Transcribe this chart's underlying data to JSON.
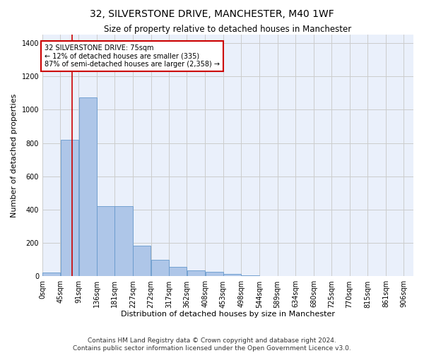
{
  "title": "32, SILVERSTONE DRIVE, MANCHESTER, M40 1WF",
  "subtitle": "Size of property relative to detached houses in Manchester",
  "xlabel": "Distribution of detached houses by size in Manchester",
  "ylabel": "Number of detached properties",
  "footer_line1": "Contains HM Land Registry data © Crown copyright and database right 2024.",
  "footer_line2": "Contains public sector information licensed under the Open Government Licence v3.0.",
  "annotation_title": "32 SILVERSTONE DRIVE: 75sqm",
  "annotation_line1": "← 12% of detached houses are smaller (335)",
  "annotation_line2": "87% of semi-detached houses are larger (2,358) →",
  "bar_left_edges": [
    0,
    45,
    91,
    136,
    181,
    227,
    272,
    317,
    362,
    408,
    453,
    498,
    544,
    589,
    634,
    680,
    725,
    770,
    815,
    861
  ],
  "bar_widths": [
    45,
    46,
    45,
    45,
    46,
    45,
    45,
    45,
    46,
    45,
    45,
    46,
    45,
    45,
    46,
    45,
    45,
    45,
    46,
    45
  ],
  "bar_heights": [
    25,
    820,
    1075,
    420,
    420,
    185,
    100,
    55,
    35,
    28,
    15,
    5,
    3,
    1,
    0,
    0,
    0,
    0,
    0,
    0
  ],
  "tick_labels": [
    "0sqm",
    "45sqm",
    "91sqm",
    "136sqm",
    "181sqm",
    "227sqm",
    "272sqm",
    "317sqm",
    "362sqm",
    "408sqm",
    "453sqm",
    "498sqm",
    "544sqm",
    "589sqm",
    "634sqm",
    "680sqm",
    "725sqm",
    "770sqm",
    "815sqm",
    "861sqm",
    "906sqm"
  ],
  "bar_color": "#AEC6E8",
  "bar_edge_color": "#6699CC",
  "vline_x": 75,
  "vline_color": "#CC0000",
  "annotation_box_color": "#CC0000",
  "ylim": [
    0,
    1450
  ],
  "xlim": [
    0,
    930
  ],
  "yticks": [
    0,
    200,
    400,
    600,
    800,
    1000,
    1200,
    1400
  ],
  "grid_color": "#CCCCCC",
  "bg_color": "#EAF0FB",
  "title_fontsize": 10,
  "subtitle_fontsize": 8.5,
  "axis_label_fontsize": 8,
  "tick_fontsize": 7,
  "annotation_fontsize": 7,
  "footer_fontsize": 6.5
}
